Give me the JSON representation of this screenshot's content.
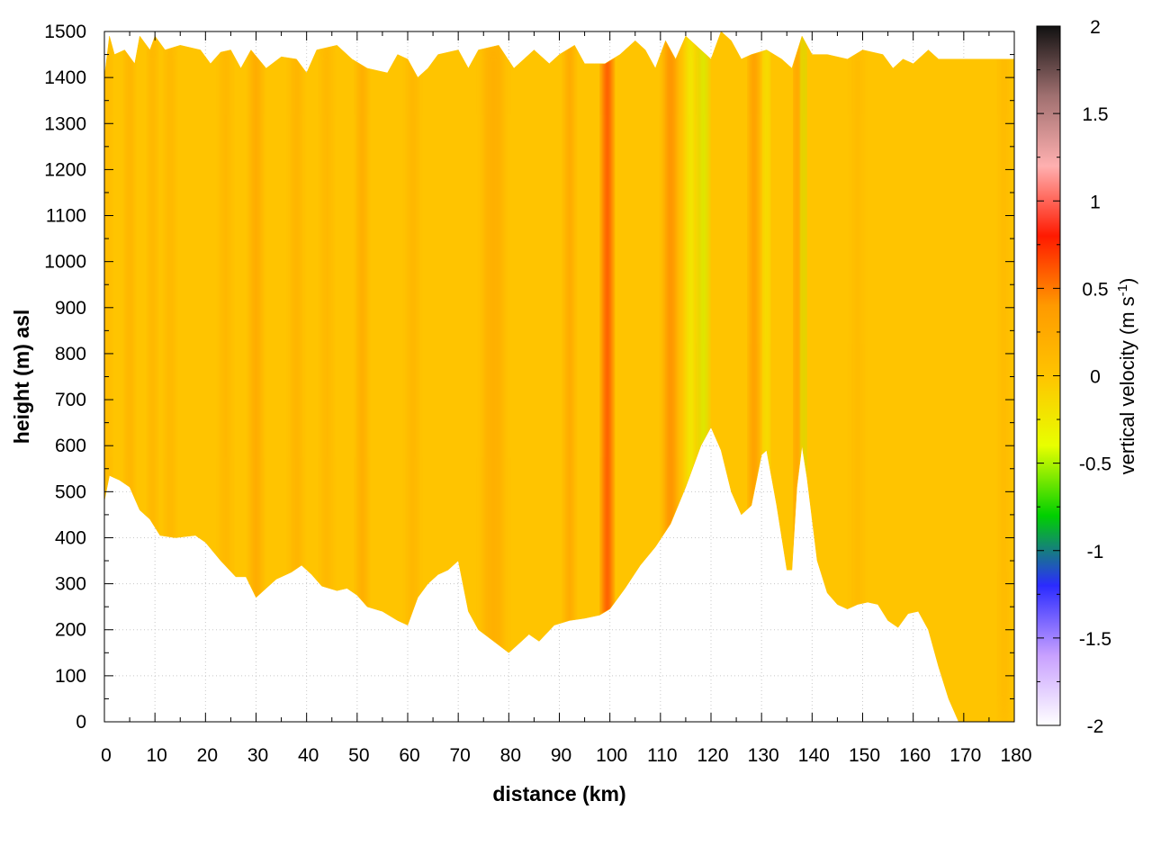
{
  "chart_data": {
    "type": "heatmap",
    "title": "",
    "xlabel": "distance (km)",
    "ylabel": "height (m) asl",
    "xlim": [
      0,
      180
    ],
    "ylim": [
      0,
      1500
    ],
    "x_ticks": [
      "0",
      "10",
      "20",
      "30",
      "40",
      "50",
      "60",
      "70",
      "80",
      "90",
      "100",
      "110",
      "120",
      "130",
      "140",
      "150",
      "160",
      "170",
      "180"
    ],
    "y_ticks": [
      "0",
      "100",
      "200",
      "300",
      "400",
      "500",
      "600",
      "700",
      "800",
      "900",
      "1000",
      "1100",
      "1200",
      "1300",
      "1400",
      "1500"
    ],
    "grid": true,
    "colorbar": {
      "label": "vertical velocity (m s",
      "label_superscript": "-1",
      "label_close": ")",
      "range": [
        -2,
        2
      ],
      "ticks": [
        "-2",
        "-1.5",
        "-1",
        "-0.5",
        "0",
        "0.5",
        "1",
        "1.5",
        "2"
      ],
      "colors": [
        "#ffffff",
        "#c8a0ff",
        "#2b2bff",
        "#00d000",
        "#e8ff00",
        "#ffc400",
        "#ff9a00",
        "#ff1a00",
        "#ffb0b0",
        "#a07070",
        "#111111"
      ]
    },
    "terrain_bottom": [
      [
        0,
        480
      ],
      [
        1,
        535
      ],
      [
        3,
        525
      ],
      [
        5,
        510
      ],
      [
        7,
        460
      ],
      [
        9,
        440
      ],
      [
        11,
        405
      ],
      [
        14,
        400
      ],
      [
        18,
        405
      ],
      [
        20,
        390
      ],
      [
        23,
        350
      ],
      [
        26,
        315
      ],
      [
        28,
        315
      ],
      [
        30,
        270
      ],
      [
        32,
        290
      ],
      [
        34,
        310
      ],
      [
        37,
        325
      ],
      [
        39,
        340
      ],
      [
        41,
        320
      ],
      [
        43,
        295
      ],
      [
        46,
        285
      ],
      [
        48,
        290
      ],
      [
        50,
        275
      ],
      [
        52,
        250
      ],
      [
        55,
        240
      ],
      [
        58,
        220
      ],
      [
        60,
        210
      ],
      [
        62,
        270
      ],
      [
        64,
        300
      ],
      [
        66,
        320
      ],
      [
        68,
        330
      ],
      [
        70,
        350
      ],
      [
        72,
        240
      ],
      [
        74,
        200
      ],
      [
        77,
        175
      ],
      [
        80,
        150
      ],
      [
        82,
        170
      ],
      [
        84,
        190
      ],
      [
        86,
        175
      ],
      [
        89,
        210
      ],
      [
        92,
        220
      ],
      [
        95,
        225
      ],
      [
        98,
        232
      ],
      [
        100,
        245
      ],
      [
        103,
        290
      ],
      [
        106,
        340
      ],
      [
        109,
        380
      ],
      [
        112,
        430
      ],
      [
        115,
        510
      ],
      [
        118,
        600
      ],
      [
        120,
        640
      ],
      [
        122,
        590
      ],
      [
        124,
        500
      ],
      [
        126,
        450
      ],
      [
        128,
        470
      ],
      [
        130,
        580
      ],
      [
        131,
        590
      ],
      [
        133,
        470
      ],
      [
        135,
        330
      ],
      [
        136,
        330
      ],
      [
        137,
        510
      ],
      [
        138,
        600
      ],
      [
        139,
        530
      ],
      [
        141,
        350
      ],
      [
        143,
        280
      ],
      [
        145,
        255
      ],
      [
        147,
        245
      ],
      [
        149,
        255
      ],
      [
        151,
        260
      ],
      [
        153,
        255
      ],
      [
        155,
        220
      ],
      [
        157,
        205
      ],
      [
        159,
        235
      ],
      [
        161,
        240
      ],
      [
        163,
        200
      ],
      [
        165,
        120
      ],
      [
        167,
        50
      ],
      [
        169,
        0
      ],
      [
        180,
        0
      ]
    ],
    "terrain_top": [
      [
        0,
        1400
      ],
      [
        1,
        1490
      ],
      [
        2,
        1450
      ],
      [
        4,
        1460
      ],
      [
        6,
        1430
      ],
      [
        7,
        1490
      ],
      [
        9,
        1460
      ],
      [
        10,
        1490
      ],
      [
        12,
        1460
      ],
      [
        15,
        1470
      ],
      [
        19,
        1460
      ],
      [
        21,
        1430
      ],
      [
        23,
        1455
      ],
      [
        25,
        1460
      ],
      [
        27,
        1420
      ],
      [
        29,
        1460
      ],
      [
        32,
        1420
      ],
      [
        35,
        1445
      ],
      [
        38,
        1440
      ],
      [
        40,
        1410
      ],
      [
        42,
        1460
      ],
      [
        46,
        1470
      ],
      [
        49,
        1440
      ],
      [
        52,
        1420
      ],
      [
        56,
        1410
      ],
      [
        58,
        1450
      ],
      [
        60,
        1440
      ],
      [
        62,
        1400
      ],
      [
        64,
        1420
      ],
      [
        66,
        1450
      ],
      [
        70,
        1460
      ],
      [
        72,
        1420
      ],
      [
        74,
        1460
      ],
      [
        78,
        1470
      ],
      [
        81,
        1420
      ],
      [
        83,
        1440
      ],
      [
        85,
        1460
      ],
      [
        88,
        1430
      ],
      [
        90,
        1450
      ],
      [
        93,
        1470
      ],
      [
        95,
        1430
      ],
      [
        97,
        1430
      ],
      [
        99,
        1430
      ],
      [
        102,
        1450
      ],
      [
        105,
        1480
      ],
      [
        107,
        1460
      ],
      [
        109,
        1420
      ],
      [
        111,
        1480
      ],
      [
        113,
        1440
      ],
      [
        115,
        1490
      ],
      [
        117,
        1470
      ],
      [
        120,
        1440
      ],
      [
        122,
        1500
      ],
      [
        124,
        1480
      ],
      [
        126,
        1440
      ],
      [
        128,
        1450
      ],
      [
        131,
        1460
      ],
      [
        134,
        1440
      ],
      [
        136,
        1420
      ],
      [
        138,
        1490
      ],
      [
        140,
        1450
      ],
      [
        143,
        1450
      ],
      [
        147,
        1440
      ],
      [
        150,
        1460
      ],
      [
        154,
        1450
      ],
      [
        156,
        1420
      ],
      [
        158,
        1440
      ],
      [
        160,
        1430
      ],
      [
        163,
        1460
      ],
      [
        165,
        1440
      ],
      [
        167,
        1440
      ],
      [
        171,
        1440
      ],
      [
        180,
        1440
      ]
    ],
    "updraft_bands": [
      {
        "x": 0.5,
        "width": 1.2,
        "value": 0.15
      },
      {
        "x": 5,
        "width": 1.3,
        "value": 0.22
      },
      {
        "x": 9.5,
        "width": 1.2,
        "value": 0.2
      },
      {
        "x": 13,
        "width": 1.5,
        "value": 0.15
      },
      {
        "x": 24,
        "width": 1.8,
        "value": 0.15
      },
      {
        "x": 30,
        "width": 2.0,
        "value": 0.3
      },
      {
        "x": 38,
        "width": 2.0,
        "value": 0.18
      },
      {
        "x": 44,
        "width": 1.8,
        "value": 0.15
      },
      {
        "x": 51,
        "width": 1.6,
        "value": 0.3
      },
      {
        "x": 61,
        "width": 2.0,
        "value": 0.15
      },
      {
        "x": 77,
        "width": 4.0,
        "value": 0.22
      },
      {
        "x": 92,
        "width": 1.5,
        "value": 0.35
      },
      {
        "x": 99.5,
        "width": 1.5,
        "value": 0.75
      },
      {
        "x": 112,
        "width": 2.2,
        "value": 0.45
      },
      {
        "x": 116,
        "width": 1.5,
        "value": -0.35
      },
      {
        "x": 118.5,
        "width": 1.5,
        "value": -0.45
      },
      {
        "x": 128.5,
        "width": 1.3,
        "value": 0.45
      },
      {
        "x": 131,
        "width": 0.8,
        "value": -0.4
      },
      {
        "x": 137,
        "width": 0.7,
        "value": 0.5
      },
      {
        "x": 138.3,
        "width": 0.5,
        "value": -0.5
      },
      {
        "x": 149,
        "width": 2.0,
        "value": 0.1
      },
      {
        "x": 178,
        "width": 1.5,
        "value": 0.12
      }
    ],
    "background_value": 0.0
  }
}
